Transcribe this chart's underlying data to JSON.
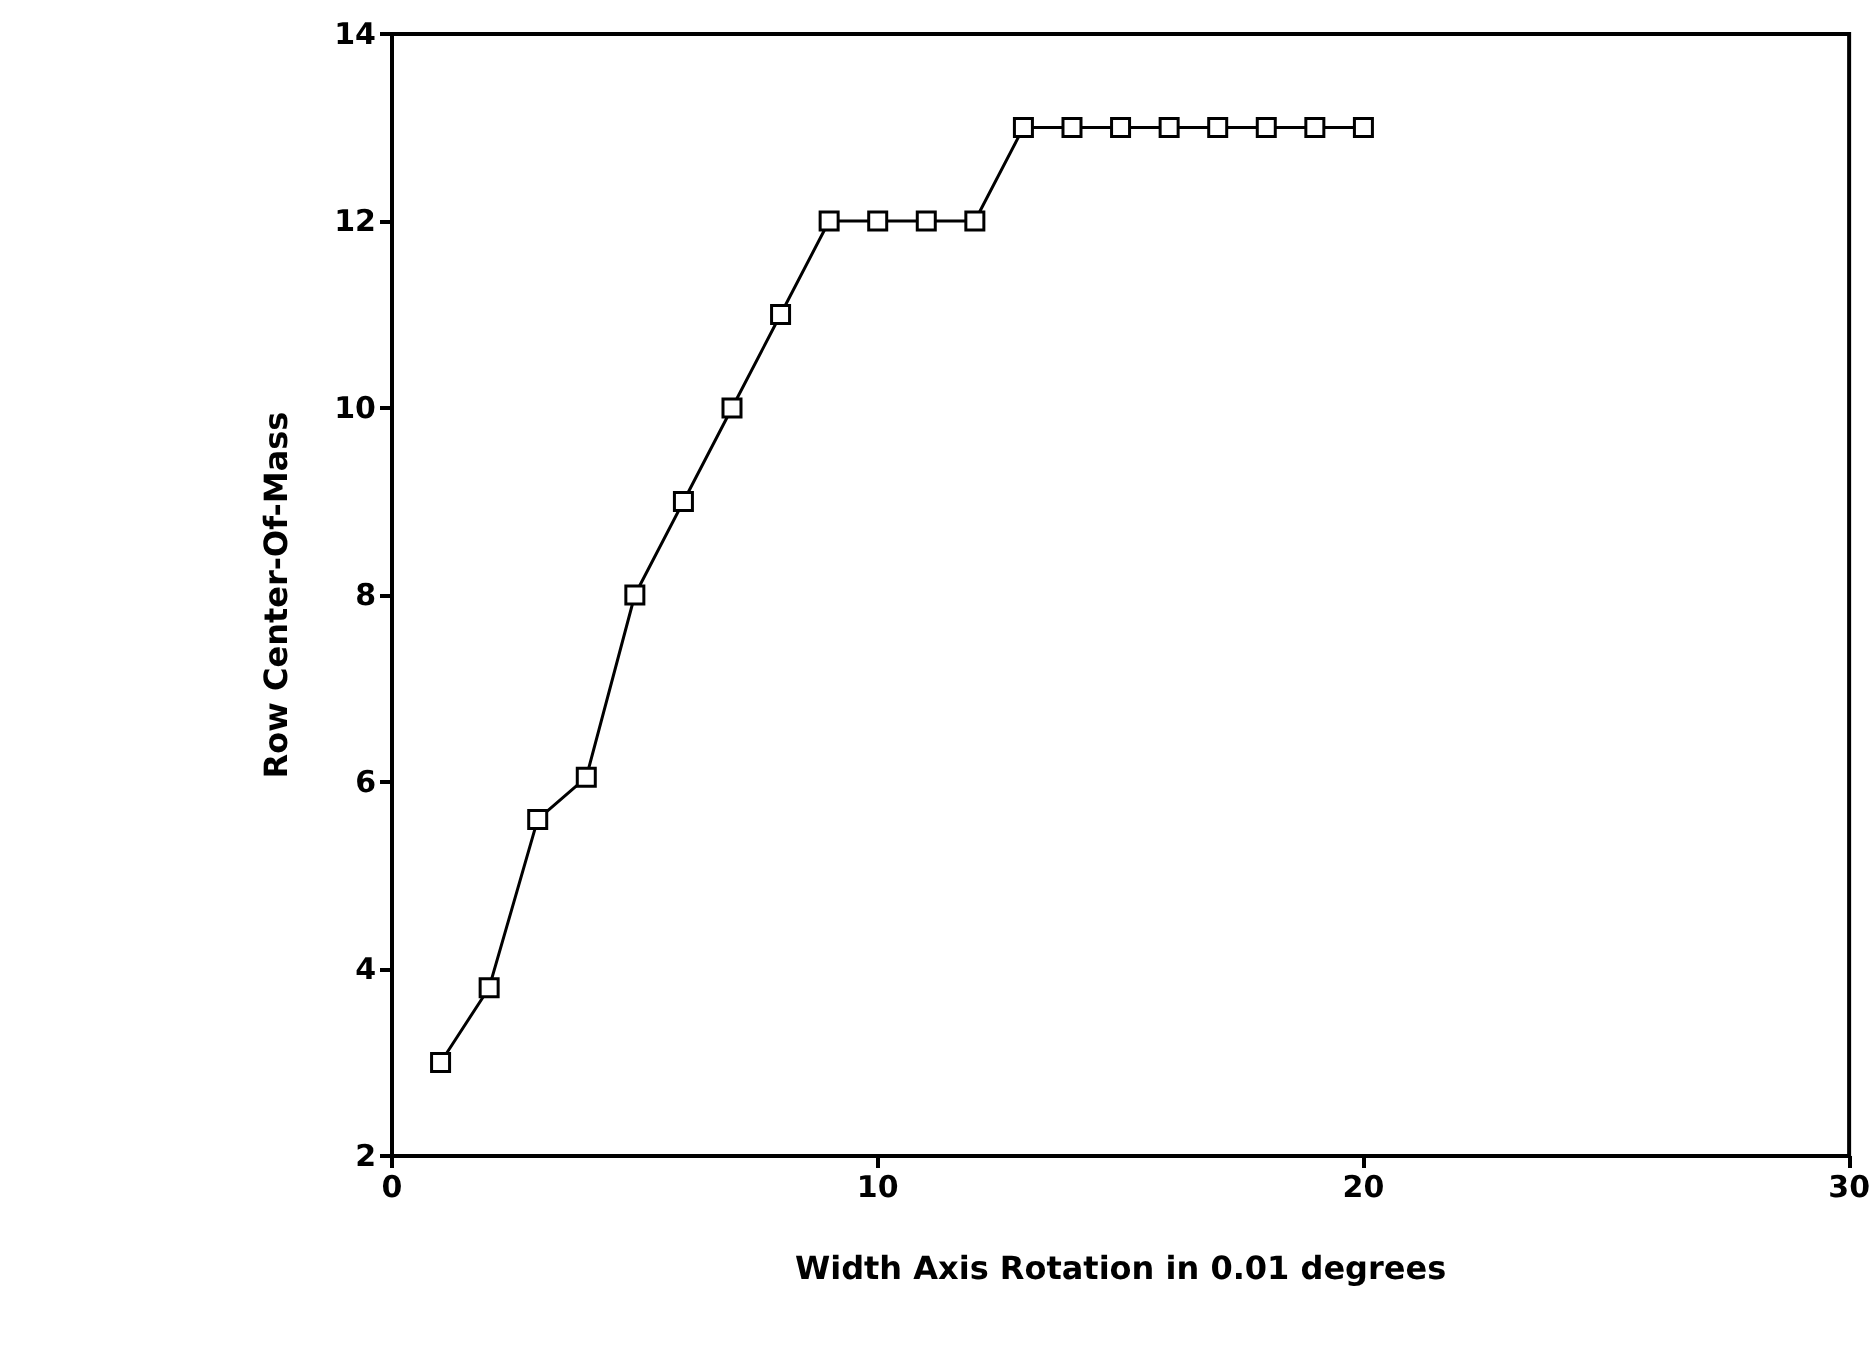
{
  "chart_data": {
    "type": "line",
    "xlabel": "Width Axis Rotation in 0.01 degrees",
    "ylabel": "Row Center-Of-Mass",
    "x": [
      1,
      2,
      3,
      4,
      5,
      6,
      7,
      8,
      9,
      10,
      11,
      12,
      13,
      14,
      15,
      16,
      17,
      18,
      19,
      20
    ],
    "series": [
      {
        "color": "#000000",
        "values": [
          3.0,
          3.8,
          5.6,
          6.05,
          8.0,
          9.0,
          10.0,
          11.0,
          12.0,
          12.0,
          12.0,
          12.0,
          13.0,
          13.0,
          13.0,
          13.0,
          13.0,
          13.0,
          13.0,
          13.0
        ]
      }
    ],
    "xlim": [
      0,
      30
    ],
    "xticks": [
      0,
      10,
      20,
      30
    ],
    "ylim": [
      2,
      14
    ],
    "yticks": [
      2,
      4,
      6,
      8,
      10,
      12,
      14
    ],
    "grid": false,
    "marker": "square",
    "line_style": "solid"
  }
}
